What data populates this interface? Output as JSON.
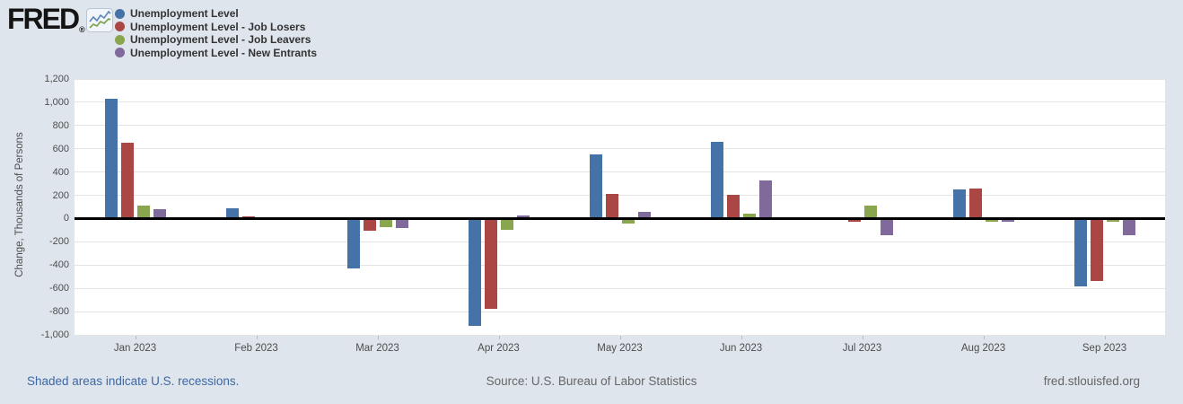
{
  "logo": {
    "text": "FRED",
    "reg": "®",
    "icon": "fred-sparkline-icon"
  },
  "legend": {
    "items": [
      {
        "label": "Unemployment Level"
      },
      {
        "label": "Unemployment Level - Job Losers"
      },
      {
        "label": "Unemployment Level - Job Leavers"
      },
      {
        "label": "Unemployment Level - New Entrants"
      }
    ]
  },
  "chart_data": {
    "type": "bar",
    "title": "",
    "ylabel": "Change, Thousands of Persons",
    "xlabel": "",
    "categories": [
      "Jan 2023",
      "Feb 2023",
      "Mar 2023",
      "Apr 2023",
      "May 2023",
      "Jun 2023",
      "Jul 2023",
      "Aug 2023",
      "Sep 2023"
    ],
    "series": [
      {
        "name": "Unemployment Level",
        "color": "#4572a7",
        "values": [
          1030,
          85,
          -430,
          -920,
          555,
          660,
          15,
          250,
          -585
        ]
      },
      {
        "name": "Unemployment Level - Job Losers",
        "color": "#aa4643",
        "values": [
          650,
          20,
          -105,
          -780,
          215,
          205,
          -30,
          255,
          -535
        ]
      },
      {
        "name": "Unemployment Level - Job Leavers",
        "color": "#89a54e",
        "values": [
          115,
          0,
          -70,
          -95,
          -40,
          45,
          110,
          -25,
          -25
        ]
      },
      {
        "name": "Unemployment Level - New Entrants",
        "color": "#80699b",
        "values": [
          80,
          -15,
          -80,
          30,
          60,
          330,
          -145,
          -30,
          -140
        ]
      }
    ],
    "ylim": [
      -1000,
      1200
    ],
    "ytick_step": 200,
    "ytick_labels": [
      "1,200",
      "1,000",
      "800",
      "600",
      "400",
      "200",
      "0",
      "-200",
      "-400",
      "-600",
      "-800",
      "-1,000"
    ],
    "grid": true,
    "zero_line": true,
    "legend_position": "top-left"
  },
  "footer": {
    "recessions_note": "Shaded areas indicate U.S. recessions.",
    "source": "Source: U.S. Bureau of Labor Statistics",
    "site": "fred.stlouisfed.org"
  }
}
